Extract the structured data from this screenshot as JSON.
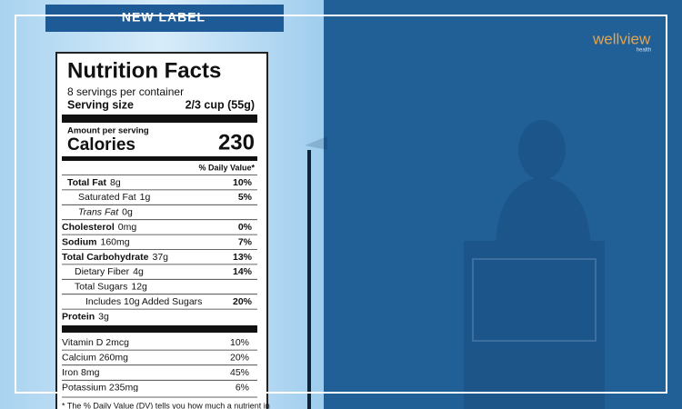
{
  "banner": "NEW LABEL",
  "logo": {
    "name": "wellview",
    "tagline": "health"
  },
  "label": {
    "title": "Nutrition Facts",
    "servings": "8 servings per container",
    "serving_size_label": "Serving size",
    "serving_size": "2/3 cup (55g)",
    "amount_per_serving": "Amount per serving",
    "calories_label": "Calories",
    "calories": "230",
    "daily_value_header": "% Daily Value*",
    "rows": [
      {
        "name": "Total Fat",
        "amount": "8g",
        "dv": "10%"
      },
      {
        "name": "Saturated Fat",
        "amount": "1g",
        "dv": "5%"
      },
      {
        "name": "Trans Fat",
        "amount": "0g"
      },
      {
        "name": "Cholesterol",
        "amount": "0mg",
        "dv": "0%"
      },
      {
        "name": "Sodium",
        "amount": "160mg",
        "dv": "7%"
      },
      {
        "name": "Total Carbohydrate",
        "amount": "37g",
        "dv": "13%"
      },
      {
        "name": "Dietary Fiber",
        "amount": "4g",
        "dv": "14%"
      },
      {
        "name": "Total Sugars",
        "amount": "12g"
      },
      {
        "name": "Includes 10g Added Sugars",
        "dv": "20%"
      },
      {
        "name": "Protein",
        "amount": "3g"
      }
    ],
    "vitamins": [
      {
        "name": "Vitamin D 2mcg",
        "dv": "10%"
      },
      {
        "name": "Calcium 260mg",
        "dv": "20%"
      },
      {
        "name": "Iron 8mg",
        "dv": "45%"
      },
      {
        "name": "Potassium 235mg",
        "dv": "6%"
      }
    ],
    "footnote": "* The % Daily Value (DV) tells you how much a nutrient in"
  }
}
